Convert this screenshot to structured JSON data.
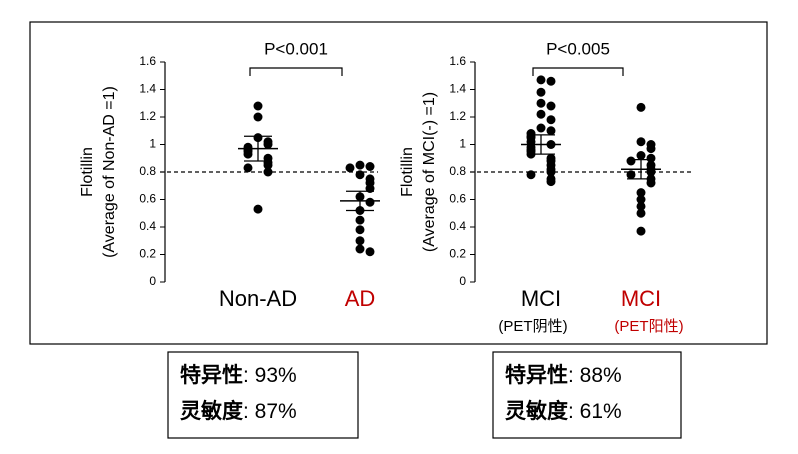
{
  "chart_data": [
    {
      "type": "strip",
      "annotation": "P<0.001",
      "ylabel": [
        "Flotillin",
        "(Average of Non-AD =1)"
      ],
      "categories": [
        "Non-AD",
        "AD"
      ],
      "category_colors": [
        "#000000",
        "#c00000"
      ],
      "values": [
        [
          1.28,
          1.2,
          1.05,
          1.02,
          1.0,
          0.98,
          0.96,
          0.95,
          0.93,
          0.9,
          0.87,
          0.85,
          0.83,
          0.8,
          0.53
        ],
        [
          0.85,
          0.84,
          0.83,
          0.78,
          0.75,
          0.72,
          0.68,
          0.62,
          0.58,
          0.52,
          0.45,
          0.38,
          0.3,
          0.24,
          0.22
        ]
      ],
      "mean": [
        0.97,
        0.59
      ],
      "error": [
        0.09,
        0.07
      ],
      "threshold": 0.8,
      "ylim": [
        0,
        1.6
      ],
      "yticks": [
        0,
        0.2,
        0.4,
        0.6,
        0.8,
        1,
        1.2,
        1.4,
        1.6
      ],
      "stats": [
        {
          "label": "特异性",
          "value": ": 93%"
        },
        {
          "label": "灵敏度",
          "value": ": 87%"
        }
      ]
    },
    {
      "type": "strip",
      "annotation": "P<0.005",
      "ylabel": [
        "Flotillin",
        "(Average of MCI(-) =1)"
      ],
      "categories": [
        "MCI",
        "MCI"
      ],
      "category_colors": [
        "#000000",
        "#c00000"
      ],
      "category_sublabels": [
        "(PET阴性)",
        "(PET阳性)"
      ],
      "values": [
        [
          1.47,
          1.46,
          1.38,
          1.3,
          1.28,
          1.22,
          1.18,
          1.12,
          1.1,
          1.08,
          1.06,
          1.05,
          1.02,
          1.0,
          0.98,
          0.96,
          0.95,
          0.93,
          0.9,
          0.88,
          0.85,
          0.82,
          0.8,
          0.78,
          0.75,
          0.73
        ],
        [
          1.27,
          1.02,
          1.0,
          0.97,
          0.92,
          0.9,
          0.88,
          0.85,
          0.82,
          0.8,
          0.78,
          0.75,
          0.72,
          0.65,
          0.6,
          0.55,
          0.5,
          0.37
        ]
      ],
      "mean": [
        1.0,
        0.82
      ],
      "error": [
        0.07,
        0.07
      ],
      "threshold": 0.8,
      "ylim": [
        0,
        1.6
      ],
      "yticks": [
        0,
        0.2,
        0.4,
        0.6,
        0.8,
        1,
        1.2,
        1.4,
        1.6
      ],
      "stats": [
        {
          "label": "特异性",
          "value": ": 88%"
        },
        {
          "label": "灵敏度",
          "value": ": 61%"
        }
      ]
    }
  ]
}
